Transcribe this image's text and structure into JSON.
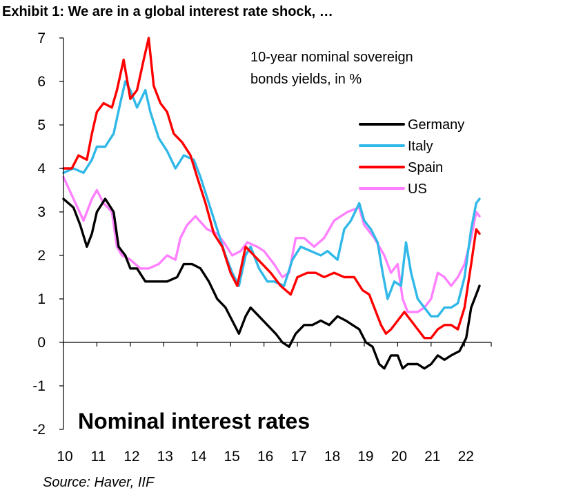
{
  "exhibit_title": "Exhibit 1: We are in a global interest rate shock, …",
  "source": "Source: Haver, IIF",
  "chart_data": {
    "type": "line",
    "title": "Nominal interest rates",
    "subtitle": [
      "10-year nominal sovereign",
      "bonds yields, in %"
    ],
    "xlabel": "",
    "ylabel": "",
    "xlim": [
      2010,
      2022.8
    ],
    "ylim": [
      -2,
      7
    ],
    "x_tick_labels": [
      {
        "value": 2010,
        "label": "10"
      },
      {
        "value": 2011,
        "label": "11"
      },
      {
        "value": 2012,
        "label": "12"
      },
      {
        "value": 2013,
        "label": "13"
      },
      {
        "value": 2014,
        "label": "14"
      },
      {
        "value": 2015,
        "label": "15"
      },
      {
        "value": 2016,
        "label": "16"
      },
      {
        "value": 2017,
        "label": "17"
      },
      {
        "value": 2018,
        "label": "18"
      },
      {
        "value": 2019,
        "label": "19"
      },
      {
        "value": 2020,
        "label": "20"
      },
      {
        "value": 2021,
        "label": "21"
      },
      {
        "value": 2022,
        "label": "22"
      }
    ],
    "y_ticks": [
      -2,
      -1,
      0,
      1,
      2,
      3,
      4,
      5,
      6,
      7
    ],
    "legend_position": "right",
    "grid": false,
    "series": [
      {
        "name": "US",
        "color": "#ff80ff",
        "x": [
          2010.0,
          2010.3,
          2010.6,
          2010.85,
          2011.0,
          2011.2,
          2011.45,
          2011.6,
          2011.75,
          2012.0,
          2012.3,
          2012.55,
          2012.85,
          2013.1,
          2013.35,
          2013.5,
          2013.7,
          2013.95,
          2014.3,
          2014.6,
          2014.8,
          2015.05,
          2015.3,
          2015.5,
          2015.8,
          2016.0,
          2016.3,
          2016.55,
          2016.75,
          2016.95,
          2017.2,
          2017.5,
          2017.8,
          2018.1,
          2018.5,
          2018.85,
          2019.0,
          2019.3,
          2019.6,
          2019.8,
          2020.0,
          2020.15,
          2020.3,
          2020.6,
          2020.8,
          2021.0,
          2021.2,
          2021.4,
          2021.6,
          2021.8,
          2022.0,
          2022.2,
          2022.35,
          2022.45
        ],
        "y": [
          3.8,
          3.3,
          2.8,
          3.3,
          3.5,
          3.2,
          3.0,
          2.2,
          2.0,
          1.9,
          1.7,
          1.7,
          1.8,
          2.0,
          1.9,
          2.4,
          2.7,
          2.9,
          2.6,
          2.5,
          2.3,
          2.0,
          2.1,
          2.3,
          2.2,
          2.1,
          1.8,
          1.5,
          1.6,
          2.4,
          2.4,
          2.2,
          2.4,
          2.8,
          3.0,
          3.1,
          2.7,
          2.4,
          2.0,
          1.6,
          1.8,
          1.0,
          0.7,
          0.7,
          0.8,
          1.0,
          1.6,
          1.5,
          1.3,
          1.5,
          1.8,
          2.4,
          3.0,
          2.9
        ]
      },
      {
        "name": "Italy",
        "color": "#30b8e8",
        "x": [
          2010.0,
          2010.3,
          2010.6,
          2010.85,
          2011.0,
          2011.25,
          2011.5,
          2011.7,
          2011.85,
          2012.0,
          2012.2,
          2012.45,
          2012.6,
          2012.85,
          2013.1,
          2013.35,
          2013.6,
          2013.9,
          2014.1,
          2014.35,
          2014.6,
          2014.85,
          2015.05,
          2015.25,
          2015.45,
          2015.6,
          2015.85,
          2016.1,
          2016.3,
          2016.6,
          2016.85,
          2017.1,
          2017.4,
          2017.7,
          2017.9,
          2018.2,
          2018.4,
          2018.6,
          2018.85,
          2019.0,
          2019.2,
          2019.4,
          2019.55,
          2019.7,
          2019.9,
          2020.1,
          2020.25,
          2020.4,
          2020.6,
          2020.8,
          2021.0,
          2021.2,
          2021.4,
          2021.6,
          2021.8,
          2022.0,
          2022.2,
          2022.35,
          2022.45
        ],
        "y": [
          3.9,
          4.0,
          3.9,
          4.2,
          4.5,
          4.5,
          4.8,
          5.5,
          6.0,
          5.8,
          5.4,
          5.8,
          5.3,
          4.7,
          4.4,
          4.0,
          4.3,
          4.2,
          3.8,
          3.2,
          2.6,
          2.0,
          1.6,
          1.3,
          2.0,
          2.2,
          1.7,
          1.4,
          1.4,
          1.3,
          1.9,
          2.2,
          2.1,
          2.0,
          2.1,
          1.9,
          2.6,
          2.8,
          3.2,
          2.8,
          2.6,
          2.3,
          1.6,
          1.0,
          1.4,
          1.3,
          2.3,
          1.6,
          1.0,
          0.8,
          0.6,
          0.6,
          0.8,
          0.8,
          0.9,
          1.5,
          2.6,
          3.2,
          3.3
        ]
      },
      {
        "name": "Spain",
        "color": "#ff0000",
        "x": [
          2010.0,
          2010.25,
          2010.45,
          2010.7,
          2010.85,
          2011.0,
          2011.2,
          2011.45,
          2011.6,
          2011.8,
          2012.0,
          2012.2,
          2012.4,
          2012.55,
          2012.7,
          2012.9,
          2013.1,
          2013.3,
          2013.55,
          2013.8,
          2014.0,
          2014.25,
          2014.5,
          2014.75,
          2015.0,
          2015.2,
          2015.45,
          2015.7,
          2015.95,
          2016.2,
          2016.5,
          2016.8,
          2017.0,
          2017.3,
          2017.55,
          2017.8,
          2018.1,
          2018.4,
          2018.7,
          2018.95,
          2019.15,
          2019.35,
          2019.5,
          2019.65,
          2019.8,
          2020.0,
          2020.2,
          2020.4,
          2020.6,
          2020.8,
          2021.0,
          2021.2,
          2021.4,
          2021.6,
          2021.8,
          2022.0,
          2022.2,
          2022.35,
          2022.45
        ],
        "y": [
          4.0,
          4.0,
          4.3,
          4.2,
          4.8,
          5.3,
          5.5,
          5.4,
          5.8,
          6.5,
          5.6,
          5.8,
          6.5,
          7.0,
          5.9,
          5.5,
          5.3,
          4.8,
          4.6,
          4.3,
          3.8,
          3.2,
          2.5,
          2.2,
          1.6,
          1.3,
          2.2,
          2.0,
          1.8,
          1.6,
          1.3,
          1.1,
          1.5,
          1.6,
          1.6,
          1.5,
          1.6,
          1.5,
          1.5,
          1.2,
          1.1,
          0.7,
          0.4,
          0.2,
          0.3,
          0.5,
          0.7,
          0.5,
          0.3,
          0.1,
          0.1,
          0.3,
          0.4,
          0.4,
          0.3,
          0.8,
          1.8,
          2.6,
          2.5
        ]
      },
      {
        "name": "Germany",
        "color": "#000000",
        "x": [
          2010.0,
          2010.3,
          2010.5,
          2010.7,
          2010.85,
          2011.0,
          2011.25,
          2011.5,
          2011.65,
          2011.85,
          2012.0,
          2012.2,
          2012.45,
          2012.6,
          2012.85,
          2013.1,
          2013.4,
          2013.6,
          2013.85,
          2014.1,
          2014.35,
          2014.6,
          2014.85,
          2015.05,
          2015.25,
          2015.45,
          2015.6,
          2015.85,
          2016.1,
          2016.35,
          2016.55,
          2016.75,
          2016.95,
          2017.2,
          2017.45,
          2017.7,
          2017.95,
          2018.2,
          2018.45,
          2018.65,
          2018.85,
          2019.05,
          2019.25,
          2019.45,
          2019.6,
          2019.8,
          2020.0,
          2020.15,
          2020.3,
          2020.45,
          2020.6,
          2020.8,
          2021.0,
          2021.2,
          2021.4,
          2021.6,
          2021.85,
          2022.05,
          2022.2,
          2022.35,
          2022.45
        ],
        "y": [
          3.3,
          3.1,
          2.7,
          2.2,
          2.5,
          3.0,
          3.3,
          3.0,
          2.2,
          2.0,
          1.7,
          1.7,
          1.4,
          1.4,
          1.4,
          1.4,
          1.5,
          1.8,
          1.8,
          1.7,
          1.4,
          1.0,
          0.8,
          0.5,
          0.2,
          0.6,
          0.8,
          0.6,
          0.4,
          0.2,
          0.0,
          -0.1,
          0.2,
          0.4,
          0.4,
          0.5,
          0.4,
          0.6,
          0.5,
          0.4,
          0.3,
          0.0,
          -0.1,
          -0.5,
          -0.6,
          -0.3,
          -0.3,
          -0.6,
          -0.5,
          -0.5,
          -0.5,
          -0.6,
          -0.5,
          -0.3,
          -0.4,
          -0.3,
          -0.2,
          0.1,
          0.8,
          1.1,
          1.3
        ]
      }
    ],
    "legend_order": [
      "Germany",
      "Italy",
      "Spain",
      "US"
    ]
  }
}
